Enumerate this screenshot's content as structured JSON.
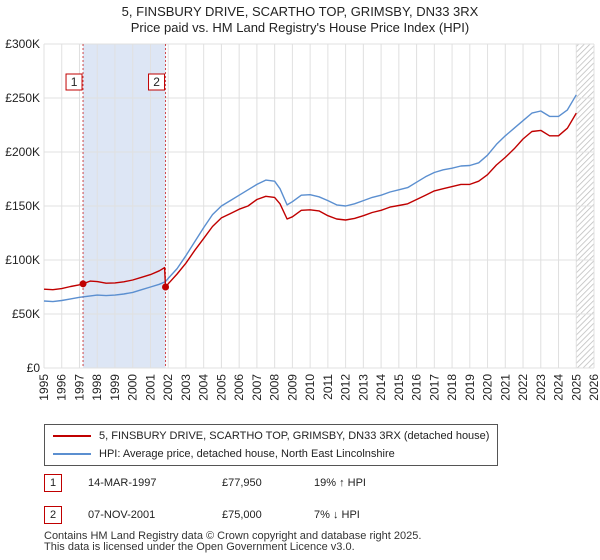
{
  "title": {
    "line1": "5, FINSBURY DRIVE, SCARTHO TOP, GRIMSBY, DN33 3RX",
    "line2": "Price paid vs. HM Land Registry's House Price Index (HPI)"
  },
  "colors": {
    "property": "#c00000",
    "hpi": "#5b8fd0",
    "band": "#dde6f5",
    "grid": "#e0e0e0",
    "sale_marker": "#c00000"
  },
  "chart_data": {
    "type": "line",
    "title": "5, FINSBURY DRIVE, SCARTHO TOP, GRIMSBY, DN33 3RX — Price paid vs. HM Land Registry's House Price Index (HPI)",
    "xlabel": "",
    "ylabel": "",
    "xlim": [
      1995,
      2026
    ],
    "ylim": [
      0,
      300000
    ],
    "y_ticks": [
      0,
      50000,
      100000,
      150000,
      200000,
      250000,
      300000
    ],
    "y_tick_labels": [
      "£0",
      "£50K",
      "£100K",
      "£150K",
      "£200K",
      "£250K",
      "£300K"
    ],
    "x_ticks": [
      1995,
      1996,
      1997,
      1998,
      1999,
      2000,
      2001,
      2002,
      2003,
      2004,
      2005,
      2006,
      2007,
      2008,
      2009,
      2010,
      2011,
      2012,
      2013,
      2014,
      2015,
      2016,
      2017,
      2018,
      2019,
      2020,
      2021,
      2022,
      2023,
      2024,
      2025,
      2026
    ],
    "grid": true,
    "ownership_band": [
      1997.2,
      2001.85
    ],
    "forecast_from": 2025.0,
    "series": [
      {
        "name": "5, FINSBURY DRIVE, SCARTHO TOP, GRIMSBY, DN33 3RX (detached house)",
        "color": "#c00000",
        "x": [
          1995,
          1995.5,
          1996,
          1996.5,
          1997,
          1997.2,
          1997.6,
          1998,
          1998.5,
          1999,
          1999.5,
          2000,
          2000.5,
          2001,
          2001.5,
          2001.8,
          2001.85,
          2002,
          2002.5,
          2003,
          2003.5,
          2004,
          2004.5,
          2005,
          2005.5,
          2006,
          2006.5,
          2007,
          2007.5,
          2008,
          2008.3,
          2008.7,
          2009,
          2009.5,
          2010,
          2010.5,
          2011,
          2011.5,
          2012,
          2012.5,
          2013,
          2013.5,
          2014,
          2014.5,
          2015,
          2015.5,
          2016,
          2016.5,
          2017,
          2017.5,
          2018,
          2018.5,
          2019,
          2019.5,
          2020,
          2020.5,
          2021,
          2021.5,
          2022,
          2022.5,
          2023,
          2023.5,
          2024,
          2024.5,
          2025
        ],
        "y": [
          73000,
          72500,
          73500,
          75500,
          77000,
          77950,
          80500,
          80000,
          78500,
          78800,
          79800,
          81500,
          84000,
          86500,
          90000,
          93000,
          75000,
          78000,
          87000,
          97000,
          109000,
          120000,
          131000,
          139000,
          143000,
          147000,
          150000,
          156000,
          159000,
          158000,
          152000,
          138000,
          140000,
          146000,
          146500,
          145500,
          141000,
          138000,
          137000,
          138500,
          141000,
          144000,
          146000,
          149000,
          150500,
          152000,
          156000,
          160000,
          164000,
          166000,
          168000,
          170000,
          170000,
          173000,
          179000,
          188000,
          195000,
          203000,
          212000,
          219000,
          220000,
          215000,
          215000,
          222000,
          236000
        ]
      },
      {
        "name": "HPI: Average price, detached house, North East Lincolnshire",
        "color": "#5b8fd0",
        "x": [
          1995,
          1995.5,
          1996,
          1996.5,
          1997,
          1997.5,
          1998,
          1998.5,
          1999,
          1999.5,
          2000,
          2000.5,
          2001,
          2001.5,
          2001.85,
          2002,
          2002.5,
          2003,
          2003.5,
          2004,
          2004.5,
          2005,
          2005.5,
          2006,
          2006.5,
          2007,
          2007.5,
          2008,
          2008.3,
          2008.7,
          2009,
          2009.5,
          2010,
          2010.5,
          2011,
          2011.5,
          2012,
          2012.5,
          2013,
          2013.5,
          2014,
          2014.5,
          2015,
          2015.5,
          2016,
          2016.5,
          2017,
          2017.5,
          2018,
          2018.5,
          2019,
          2019.5,
          2020,
          2020.5,
          2021,
          2021.5,
          2022,
          2022.5,
          2023,
          2023.5,
          2024,
          2024.5,
          2025
        ],
        "y": [
          62000,
          61500,
          62500,
          64000,
          65500,
          66500,
          67500,
          67000,
          67500,
          68500,
          70000,
          72500,
          75000,
          77500,
          80000,
          83000,
          92000,
          104000,
          117000,
          130000,
          142000,
          150000,
          155000,
          160000,
          165000,
          170000,
          174000,
          173000,
          166000,
          151000,
          154000,
          160000,
          160500,
          158500,
          155000,
          151000,
          150000,
          152000,
          155000,
          158000,
          160000,
          163000,
          165000,
          167000,
          172000,
          177000,
          181000,
          183500,
          185000,
          187000,
          187500,
          190000,
          197000,
          207000,
          215000,
          222000,
          229000,
          236000,
          238000,
          233000,
          233000,
          239000,
          253000
        ]
      }
    ],
    "sales": [
      {
        "label": "1",
        "x": 1997.2,
        "y": 77950
      },
      {
        "label": "2",
        "x": 2001.85,
        "y": 75000
      }
    ]
  },
  "legend": {
    "property_label": "5, FINSBURY DRIVE, SCARTHO TOP, GRIMSBY, DN33 3RX (detached house)",
    "hpi_label": "HPI: Average price, detached house, North East Lincolnshire"
  },
  "sales_table": [
    {
      "num": "1",
      "date": "14-MAR-1997",
      "price": "£77,950",
      "hpi": "19% ↑ HPI"
    },
    {
      "num": "2",
      "date": "07-NOV-2001",
      "price": "£75,000",
      "hpi": "7% ↓ HPI"
    }
  ],
  "footer": {
    "line1": "Contains HM Land Registry data © Crown copyright and database right 2025.",
    "line2": "This data is licensed under the Open Government Licence v3.0."
  }
}
